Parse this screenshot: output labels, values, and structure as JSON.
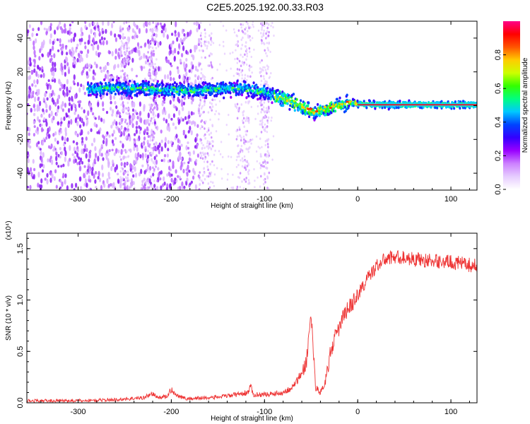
{
  "title": "C2E5.2025.192.00.33.R03",
  "chart_data": [
    {
      "type": "heatmap",
      "xlabel": "Height of straight line (km)",
      "ylabel": "Frequency (Hz)",
      "xlim": [
        -355,
        128
      ],
      "ylim": [
        -50,
        50
      ],
      "xticks": [
        -300,
        -200,
        -100,
        0,
        100
      ],
      "yticks": [
        -40,
        -20,
        0,
        20,
        40
      ],
      "colorbar": {
        "label": "Normalized spectral amplitude",
        "ticks": [
          0.0,
          0.2,
          0.4,
          0.6,
          0.8
        ],
        "range": [
          0,
          1
        ],
        "colors": [
          "#ffffff",
          "#e6ccff",
          "#cc80ff",
          "#9900ff",
          "#3300ff",
          "#0044ff",
          "#00c8ff",
          "#00ff80",
          "#33ff00",
          "#ccff00",
          "#ffcc00",
          "#ff5500",
          "#ff0000",
          "#ff0088"
        ]
      },
      "ridge": {
        "x": [
          -290,
          -260,
          -230,
          -200,
          -170,
          -140,
          -120,
          -100,
          -85,
          -70,
          -55,
          -45,
          -35,
          -25,
          -15,
          -5,
          0,
          20,
          60,
          128
        ],
        "y": [
          10,
          10.5,
          10,
          9,
          9,
          10,
          10,
          8,
          5,
          2,
          -2,
          -4,
          -2,
          0,
          1,
          2,
          0.8,
          0.5,
          0.5,
          0.5
        ]
      }
    },
    {
      "type": "line",
      "xlabel": "Height of straight line (km)",
      "ylabel": "SNR (10 * v/v)",
      "scale_label": "(x10⁴)",
      "xlim": [
        -355,
        128
      ],
      "ylim": [
        0,
        1.65
      ],
      "xticks": [
        -300,
        -200,
        -100,
        0,
        100
      ],
      "yticks": [
        "0.0",
        "0.5",
        "1.0",
        "1.5"
      ],
      "color": "#ee3333",
      "series": [
        {
          "x": [
            -355,
            -300,
            -260,
            -230,
            -220,
            -215,
            -205,
            -200,
            -195,
            -185,
            -160,
            -145,
            -130,
            -118,
            -115,
            -112,
            -100,
            -80,
            -70,
            -60,
            -55,
            -50,
            -48,
            -45,
            -40,
            -35,
            -30,
            -25,
            -20,
            -15,
            -10,
            -5,
            0,
            10,
            20,
            30,
            40,
            60,
            80,
            100,
            128
          ],
          "y": [
            0.02,
            0.02,
            0.03,
            0.05,
            0.09,
            0.05,
            0.06,
            0.13,
            0.08,
            0.04,
            0.05,
            0.06,
            0.08,
            0.1,
            0.16,
            0.08,
            0.08,
            0.1,
            0.15,
            0.28,
            0.4,
            0.88,
            0.55,
            0.15,
            0.1,
            0.2,
            0.45,
            0.62,
            0.72,
            0.85,
            0.92,
            0.98,
            1.05,
            1.2,
            1.33,
            1.4,
            1.42,
            1.4,
            1.38,
            1.37,
            1.33
          ]
        }
      ]
    }
  ]
}
